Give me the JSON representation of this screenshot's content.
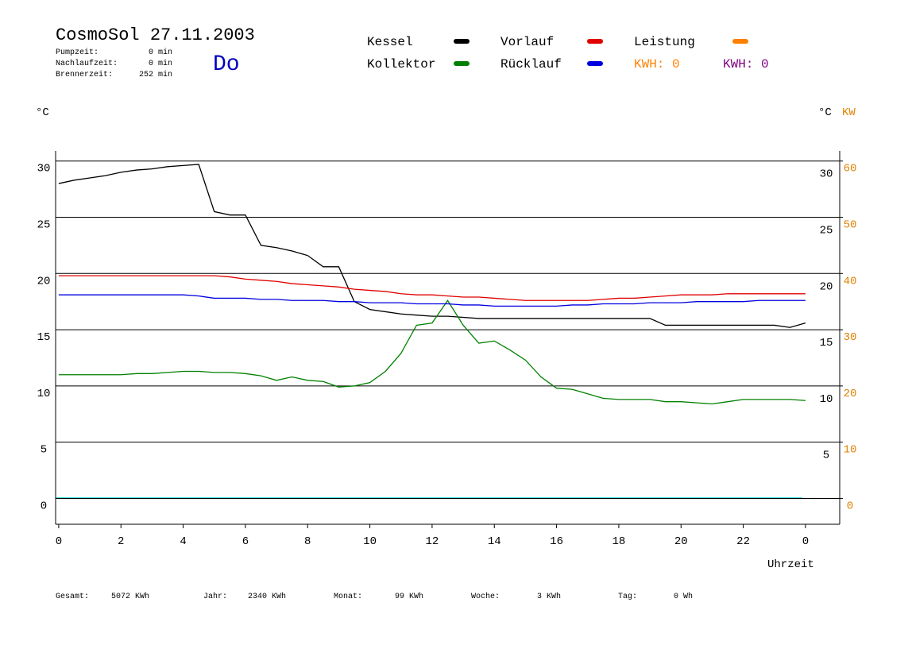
{
  "header": {
    "title": "CosmoSol 27.11.2003",
    "day": "Do",
    "stats": [
      {
        "label": "Pumpzeit:",
        "value": "0 min"
      },
      {
        "label": "Nachlaufzeit:",
        "value": "0 min"
      },
      {
        "label": "Brennerzeit:",
        "value": "252 min"
      }
    ]
  },
  "chart_data": {
    "type": "line",
    "x": [
      0,
      0.5,
      1,
      1.5,
      2,
      2.5,
      3,
      3.5,
      4,
      4.5,
      5,
      5.5,
      6,
      6.5,
      7,
      7.5,
      8,
      8.5,
      9,
      9.5,
      10,
      10.5,
      11,
      11.5,
      12,
      12.5,
      13,
      13.5,
      14,
      14.5,
      15,
      15.5,
      16,
      16.5,
      17,
      17.5,
      18,
      18.5,
      19,
      19.5,
      20,
      20.5,
      21,
      21.5,
      22,
      22.5,
      23,
      23.5,
      24
    ],
    "series": [
      {
        "name": "Kessel",
        "color": "#000000",
        "values": [
          28.0,
          28.3,
          28.5,
          28.7,
          29.0,
          29.2,
          29.3,
          29.5,
          29.6,
          29.7,
          25.5,
          25.2,
          25.2,
          22.5,
          22.3,
          22.0,
          21.6,
          20.6,
          20.6,
          17.5,
          16.8,
          16.6,
          16.4,
          16.3,
          16.2,
          16.2,
          16.1,
          16.0,
          16.0,
          16.0,
          16.0,
          16.0,
          16.0,
          16.0,
          16.0,
          16.0,
          16.0,
          16.0,
          16.0,
          15.4,
          15.4,
          15.4,
          15.4,
          15.4,
          15.4,
          15.4,
          15.4,
          15.2,
          15.6
        ]
      },
      {
        "name": "Kollektor",
        "color": "#008000",
        "values": [
          11.0,
          11.0,
          11.0,
          11.0,
          11.0,
          11.1,
          11.1,
          11.2,
          11.3,
          11.3,
          11.2,
          11.2,
          11.1,
          10.9,
          10.5,
          10.8,
          10.5,
          10.4,
          9.9,
          10.0,
          10.3,
          11.3,
          12.9,
          15.4,
          15.6,
          17.6,
          15.4,
          13.8,
          14.0,
          13.2,
          12.3,
          10.8,
          9.8,
          9.7,
          9.3,
          8.9,
          8.8,
          8.8,
          8.8,
          8.6,
          8.6,
          8.5,
          8.4,
          8.6,
          8.8,
          8.8,
          8.8,
          8.8,
          8.7
        ]
      },
      {
        "name": "Vorlauf",
        "color": "#e00000",
        "values": [
          19.8,
          19.8,
          19.8,
          19.8,
          19.8,
          19.8,
          19.8,
          19.8,
          19.8,
          19.8,
          19.8,
          19.7,
          19.5,
          19.4,
          19.3,
          19.1,
          19.0,
          18.9,
          18.8,
          18.6,
          18.5,
          18.4,
          18.2,
          18.1,
          18.1,
          18.0,
          17.9,
          17.9,
          17.8,
          17.7,
          17.6,
          17.6,
          17.6,
          17.6,
          17.6,
          17.7,
          17.8,
          17.8,
          17.9,
          18.0,
          18.1,
          18.1,
          18.1,
          18.2,
          18.2,
          18.2,
          18.2,
          18.2,
          18.2
        ]
      },
      {
        "name": "Rücklauf",
        "color": "#0000e0",
        "values": [
          18.1,
          18.1,
          18.1,
          18.1,
          18.1,
          18.1,
          18.1,
          18.1,
          18.1,
          18.0,
          17.8,
          17.8,
          17.8,
          17.7,
          17.7,
          17.6,
          17.6,
          17.6,
          17.5,
          17.5,
          17.4,
          17.4,
          17.4,
          17.3,
          17.3,
          17.3,
          17.2,
          17.2,
          17.1,
          17.1,
          17.1,
          17.1,
          17.1,
          17.2,
          17.2,
          17.3,
          17.3,
          17.3,
          17.4,
          17.4,
          17.4,
          17.5,
          17.5,
          17.5,
          17.5,
          17.6,
          17.6,
          17.6,
          17.6
        ]
      }
    ],
    "power_legend": {
      "name": "Leistung",
      "color": "#ff8000"
    },
    "kwh": [
      {
        "label": "KWH: 0",
        "color": "#ff8000"
      },
      {
        "label": "KWH: 0",
        "color": "#800080"
      }
    ],
    "ylabel": "°C",
    "y2label": "°C",
    "y2unit": "KW",
    "xlabel": "Uhrzeit",
    "xlim": [
      -0.1,
      25.1
    ],
    "xticks": [
      0,
      2,
      4,
      6,
      8,
      10,
      12,
      14,
      16,
      18,
      20,
      22,
      {
        "value": 24,
        "label": "0"
      }
    ],
    "ylim": [
      -2.3,
      30.9
    ],
    "yticks": [
      0,
      5,
      10,
      15,
      20,
      25,
      30
    ],
    "y2lim": [
      -4.6,
      61.8
    ],
    "y2ticks": [
      0,
      10,
      20,
      30,
      40,
      50,
      60
    ],
    "grid": true
  },
  "footer": [
    {
      "label": "Gesamt:",
      "value": "5072 KWh"
    },
    {
      "label": "Jahr:",
      "value": "2340 KWh"
    },
    {
      "label": "Monat:",
      "value": "99 KWh"
    },
    {
      "label": "Woche:",
      "value": "3 KWh"
    },
    {
      "label": "Tag:",
      "value": "0 Wh"
    }
  ]
}
